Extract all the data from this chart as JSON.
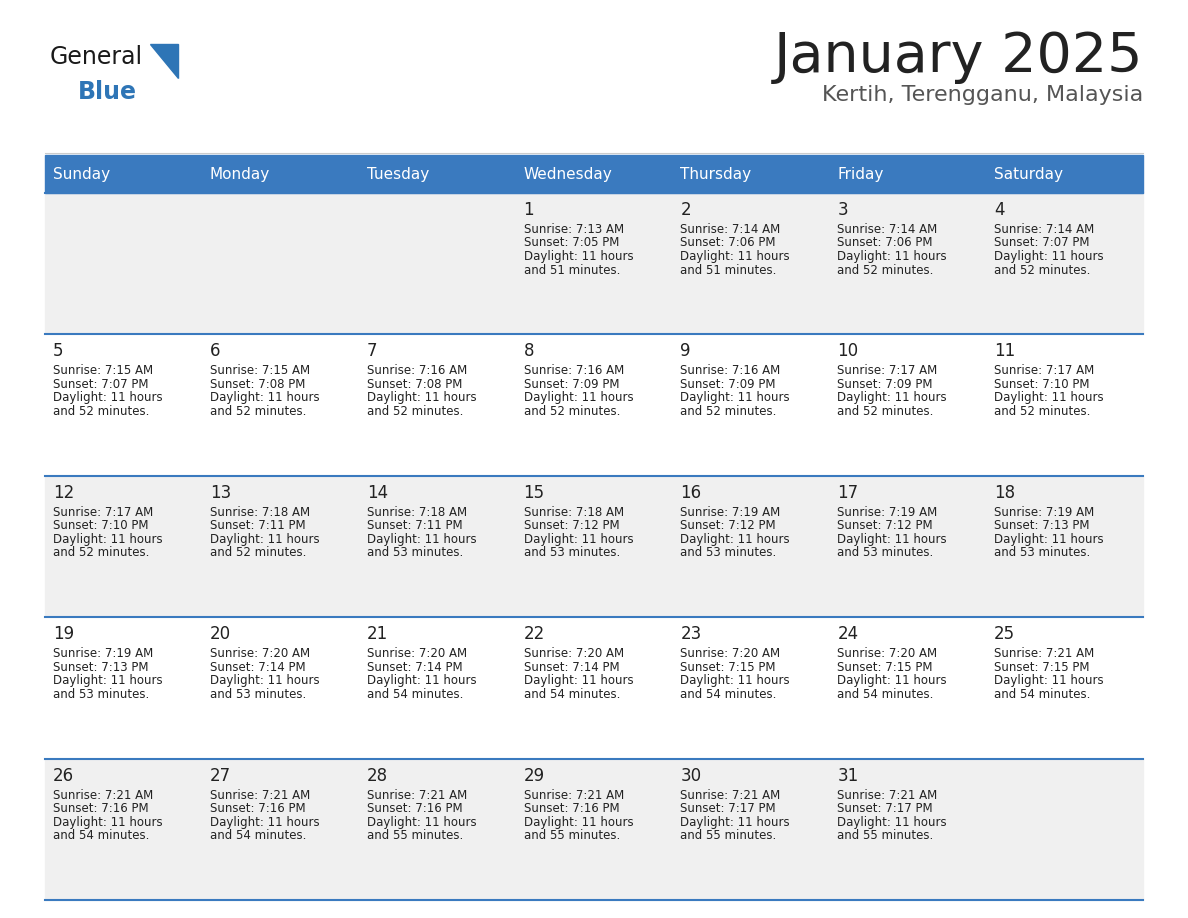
{
  "title": "January 2025",
  "subtitle": "Kertih, Terengganu, Malaysia",
  "days_of_week": [
    "Sunday",
    "Monday",
    "Tuesday",
    "Wednesday",
    "Thursday",
    "Friday",
    "Saturday"
  ],
  "header_bg": "#3a7abf",
  "header_text": "#ffffff",
  "cell_bg_odd": "#f0f0f0",
  "cell_bg_even": "#ffffff",
  "row_line_color": "#3a7abf",
  "text_color": "#222222",
  "title_color": "#222222",
  "subtitle_color": "#555555",
  "logo_general_color": "#1a1a1a",
  "logo_blue_color": "#2e75b6",
  "calendar_data": [
    [
      null,
      null,
      null,
      {
        "day": 1,
        "sunrise": "7:13 AM",
        "sunset": "7:05 PM",
        "daylight": "11 hours and 51 minutes."
      },
      {
        "day": 2,
        "sunrise": "7:14 AM",
        "sunset": "7:06 PM",
        "daylight": "11 hours and 51 minutes."
      },
      {
        "day": 3,
        "sunrise": "7:14 AM",
        "sunset": "7:06 PM",
        "daylight": "11 hours and 52 minutes."
      },
      {
        "day": 4,
        "sunrise": "7:14 AM",
        "sunset": "7:07 PM",
        "daylight": "11 hours and 52 minutes."
      }
    ],
    [
      {
        "day": 5,
        "sunrise": "7:15 AM",
        "sunset": "7:07 PM",
        "daylight": "11 hours and 52 minutes."
      },
      {
        "day": 6,
        "sunrise": "7:15 AM",
        "sunset": "7:08 PM",
        "daylight": "11 hours and 52 minutes."
      },
      {
        "day": 7,
        "sunrise": "7:16 AM",
        "sunset": "7:08 PM",
        "daylight": "11 hours and 52 minutes."
      },
      {
        "day": 8,
        "sunrise": "7:16 AM",
        "sunset": "7:09 PM",
        "daylight": "11 hours and 52 minutes."
      },
      {
        "day": 9,
        "sunrise": "7:16 AM",
        "sunset": "7:09 PM",
        "daylight": "11 hours and 52 minutes."
      },
      {
        "day": 10,
        "sunrise": "7:17 AM",
        "sunset": "7:09 PM",
        "daylight": "11 hours and 52 minutes."
      },
      {
        "day": 11,
        "sunrise": "7:17 AM",
        "sunset": "7:10 PM",
        "daylight": "11 hours and 52 minutes."
      }
    ],
    [
      {
        "day": 12,
        "sunrise": "7:17 AM",
        "sunset": "7:10 PM",
        "daylight": "11 hours and 52 minutes."
      },
      {
        "day": 13,
        "sunrise": "7:18 AM",
        "sunset": "7:11 PM",
        "daylight": "11 hours and 52 minutes."
      },
      {
        "day": 14,
        "sunrise": "7:18 AM",
        "sunset": "7:11 PM",
        "daylight": "11 hours and 53 minutes."
      },
      {
        "day": 15,
        "sunrise": "7:18 AM",
        "sunset": "7:12 PM",
        "daylight": "11 hours and 53 minutes."
      },
      {
        "day": 16,
        "sunrise": "7:19 AM",
        "sunset": "7:12 PM",
        "daylight": "11 hours and 53 minutes."
      },
      {
        "day": 17,
        "sunrise": "7:19 AM",
        "sunset": "7:12 PM",
        "daylight": "11 hours and 53 minutes."
      },
      {
        "day": 18,
        "sunrise": "7:19 AM",
        "sunset": "7:13 PM",
        "daylight": "11 hours and 53 minutes."
      }
    ],
    [
      {
        "day": 19,
        "sunrise": "7:19 AM",
        "sunset": "7:13 PM",
        "daylight": "11 hours and 53 minutes."
      },
      {
        "day": 20,
        "sunrise": "7:20 AM",
        "sunset": "7:14 PM",
        "daylight": "11 hours and 53 minutes."
      },
      {
        "day": 21,
        "sunrise": "7:20 AM",
        "sunset": "7:14 PM",
        "daylight": "11 hours and 54 minutes."
      },
      {
        "day": 22,
        "sunrise": "7:20 AM",
        "sunset": "7:14 PM",
        "daylight": "11 hours and 54 minutes."
      },
      {
        "day": 23,
        "sunrise": "7:20 AM",
        "sunset": "7:15 PM",
        "daylight": "11 hours and 54 minutes."
      },
      {
        "day": 24,
        "sunrise": "7:20 AM",
        "sunset": "7:15 PM",
        "daylight": "11 hours and 54 minutes."
      },
      {
        "day": 25,
        "sunrise": "7:21 AM",
        "sunset": "7:15 PM",
        "daylight": "11 hours and 54 minutes."
      }
    ],
    [
      {
        "day": 26,
        "sunrise": "7:21 AM",
        "sunset": "7:16 PM",
        "daylight": "11 hours and 54 minutes."
      },
      {
        "day": 27,
        "sunrise": "7:21 AM",
        "sunset": "7:16 PM",
        "daylight": "11 hours and 54 minutes."
      },
      {
        "day": 28,
        "sunrise": "7:21 AM",
        "sunset": "7:16 PM",
        "daylight": "11 hours and 55 minutes."
      },
      {
        "day": 29,
        "sunrise": "7:21 AM",
        "sunset": "7:16 PM",
        "daylight": "11 hours and 55 minutes."
      },
      {
        "day": 30,
        "sunrise": "7:21 AM",
        "sunset": "7:17 PM",
        "daylight": "11 hours and 55 minutes."
      },
      {
        "day": 31,
        "sunrise": "7:21 AM",
        "sunset": "7:17 PM",
        "daylight": "11 hours and 55 minutes."
      },
      null
    ]
  ]
}
